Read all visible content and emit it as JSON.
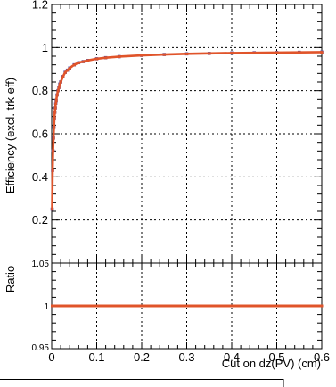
{
  "chart_data": [
    {
      "type": "scatter",
      "panel": "top",
      "xlabel": "",
      "ylabel": "Efficiency (excl. trk eff)",
      "xlim": [
        0,
        0.6
      ],
      "ylim": [
        0,
        1.2
      ],
      "x_ticks": [],
      "y_ticks": [
        "0.2",
        "0.4",
        "0.6",
        "0.8",
        "1",
        "1.2"
      ],
      "grid": true,
      "series": [
        {
          "color": "#e0542a",
          "marker_color_alt": "#5b4da0",
          "x": [
            0.001,
            0.002,
            0.003,
            0.004,
            0.005,
            0.006,
            0.007,
            0.008,
            0.009,
            0.01,
            0.012,
            0.014,
            0.016,
            0.018,
            0.02,
            0.025,
            0.03,
            0.035,
            0.04,
            0.05,
            0.06,
            0.07,
            0.08,
            0.1,
            0.12,
            0.15,
            0.2,
            0.25,
            0.3,
            0.35,
            0.4,
            0.45,
            0.5,
            0.55,
            0.6
          ],
          "y": [
            0.25,
            0.43,
            0.52,
            0.58,
            0.63,
            0.67,
            0.7,
            0.72,
            0.74,
            0.755,
            0.78,
            0.8,
            0.815,
            0.83,
            0.84,
            0.865,
            0.885,
            0.895,
            0.905,
            0.92,
            0.93,
            0.935,
            0.94,
            0.948,
            0.953,
            0.958,
            0.964,
            0.968,
            0.971,
            0.973,
            0.975,
            0.976,
            0.977,
            0.978,
            0.979
          ]
        }
      ]
    },
    {
      "type": "scatter",
      "panel": "bottom",
      "xlabel": "Cut on dz(PV) (cm)",
      "ylabel": "Ratio",
      "xlim": [
        0,
        0.6
      ],
      "ylim": [
        0.95,
        1.05
      ],
      "x_ticks": [
        "0",
        "0.1",
        "0.2",
        "0.3",
        "0.4",
        "0.5",
        "0.6"
      ],
      "y_ticks": [
        "0.95",
        "1",
        "1.05"
      ],
      "grid": true,
      "series": [
        {
          "color": "#e0542a",
          "x": [
            0.001,
            0.01,
            0.05,
            0.1,
            0.2,
            0.3,
            0.4,
            0.5,
            0.6
          ],
          "y": [
            1.0,
            1.0,
            1.0,
            1.0,
            1.0,
            1.0,
            1.0,
            1.0,
            1.0
          ]
        }
      ]
    }
  ]
}
